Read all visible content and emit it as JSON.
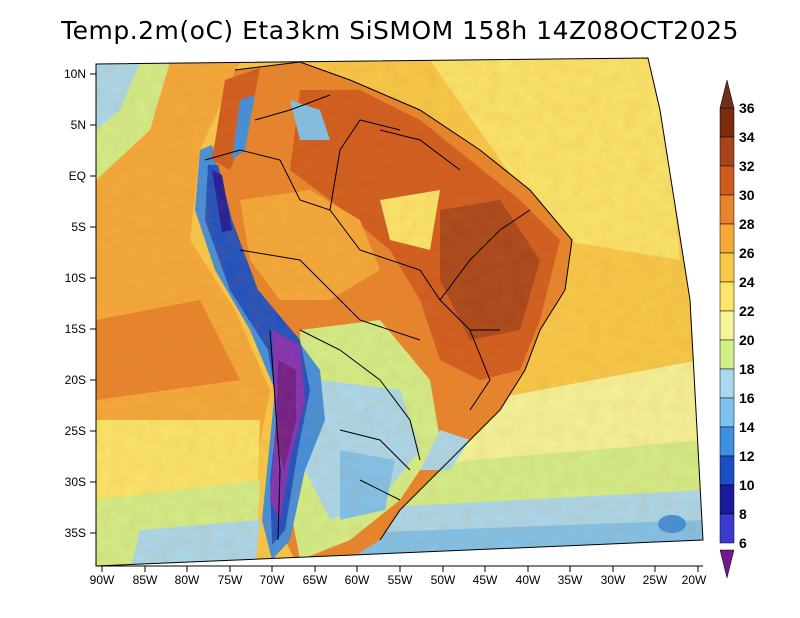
{
  "title": "Temp.2m(oC) Eta3km SiSMOM 158h 14Z08OCT2025",
  "y_axis_labels": [
    "10N",
    "5N",
    "EQ",
    "5S",
    "10S",
    "15S",
    "20S",
    "25S",
    "30S",
    "35S"
  ],
  "x_axis_labels": [
    "90W",
    "85W",
    "80W",
    "75W",
    "70W",
    "65W",
    "60W",
    "55W",
    "50W",
    "45W",
    "40W",
    "35W",
    "30W",
    "25W",
    "20W"
  ],
  "colorbar": {
    "labels": [
      "36",
      "34",
      "32",
      "30",
      "28",
      "26",
      "24",
      "22",
      "20",
      "18",
      "16",
      "14",
      "12",
      "10",
      "8",
      "6"
    ],
    "colors": [
      "#7a2c0c",
      "#a8441a",
      "#d05b1e",
      "#e8842c",
      "#f5a93a",
      "#f8c948",
      "#fbe66b",
      "#f4f59b",
      "#d2f08a",
      "#a9d9f0",
      "#7ec3ef",
      "#3f8fe0",
      "#1b4fc4",
      "#1a1a9c",
      "#3a3ad0",
      "#7f2fb8",
      "#a845c8",
      "#6e1a8c"
    ]
  },
  "regions": {
    "ocean_warm": "#f8c948",
    "atlantic_south": "#a9d9f0",
    "land_hot": "#d05b1e",
    "andes_cold": "#7f2fb8",
    "pacific_cool": "#f5a93a"
  }
}
